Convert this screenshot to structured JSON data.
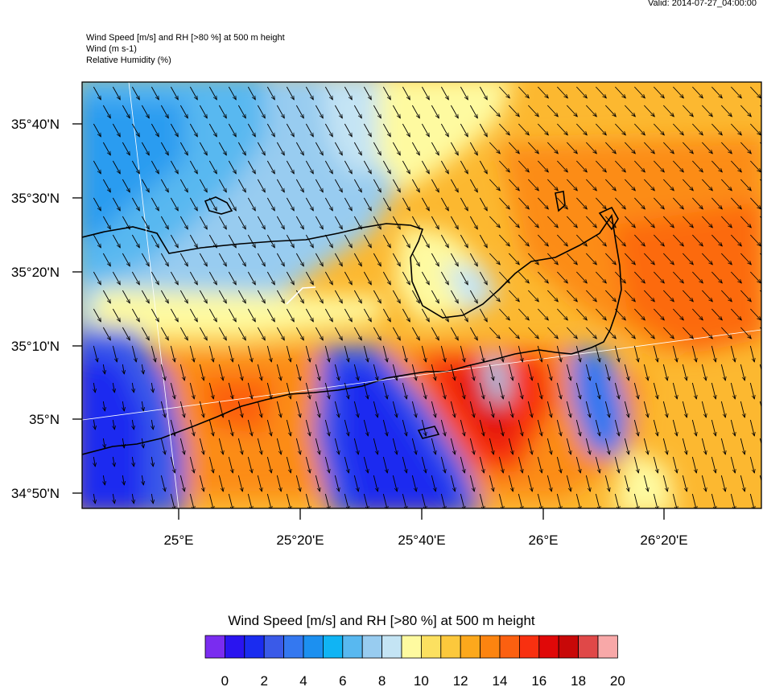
{
  "header": {
    "valid": "Valid: 2014-07-27_04:00:00",
    "lines": [
      "Wind Speed [m/s] and RH [>80 %] at 500 m height",
      "Wind   (m s-1)",
      "Relative Humidity   (%)"
    ]
  },
  "map": {
    "lat_labels": [
      "35°40'N",
      "35°30'N",
      "35°20'N",
      "35°10'N",
      "35°N",
      "34°50'N"
    ],
    "lon_labels": [
      "25°E",
      "25°20'E",
      "25°40'E",
      "26°E",
      "26°20'E"
    ]
  },
  "colorbar": {
    "title": "Wind Speed [m/s] and RH [>80 %] at 500 m height",
    "labels": [
      "0",
      "2",
      "4",
      "6",
      "8",
      "10",
      "12",
      "14",
      "16",
      "18",
      "20"
    ],
    "colors": [
      "#7a2cf0",
      "#2a14f0",
      "#1a2cf0",
      "#3a5ae8",
      "#3478f0",
      "#1c90f0",
      "#10b4f4",
      "#58b8f0",
      "#98ccf0",
      "#c4e4f4",
      "#fefaa0",
      "#fce060",
      "#fcc83c",
      "#fca81c",
      "#fc8410",
      "#fc6010",
      "#f83010",
      "#e00808",
      "#c80808",
      "#e04848",
      "#f8a8a8"
    ]
  }
}
